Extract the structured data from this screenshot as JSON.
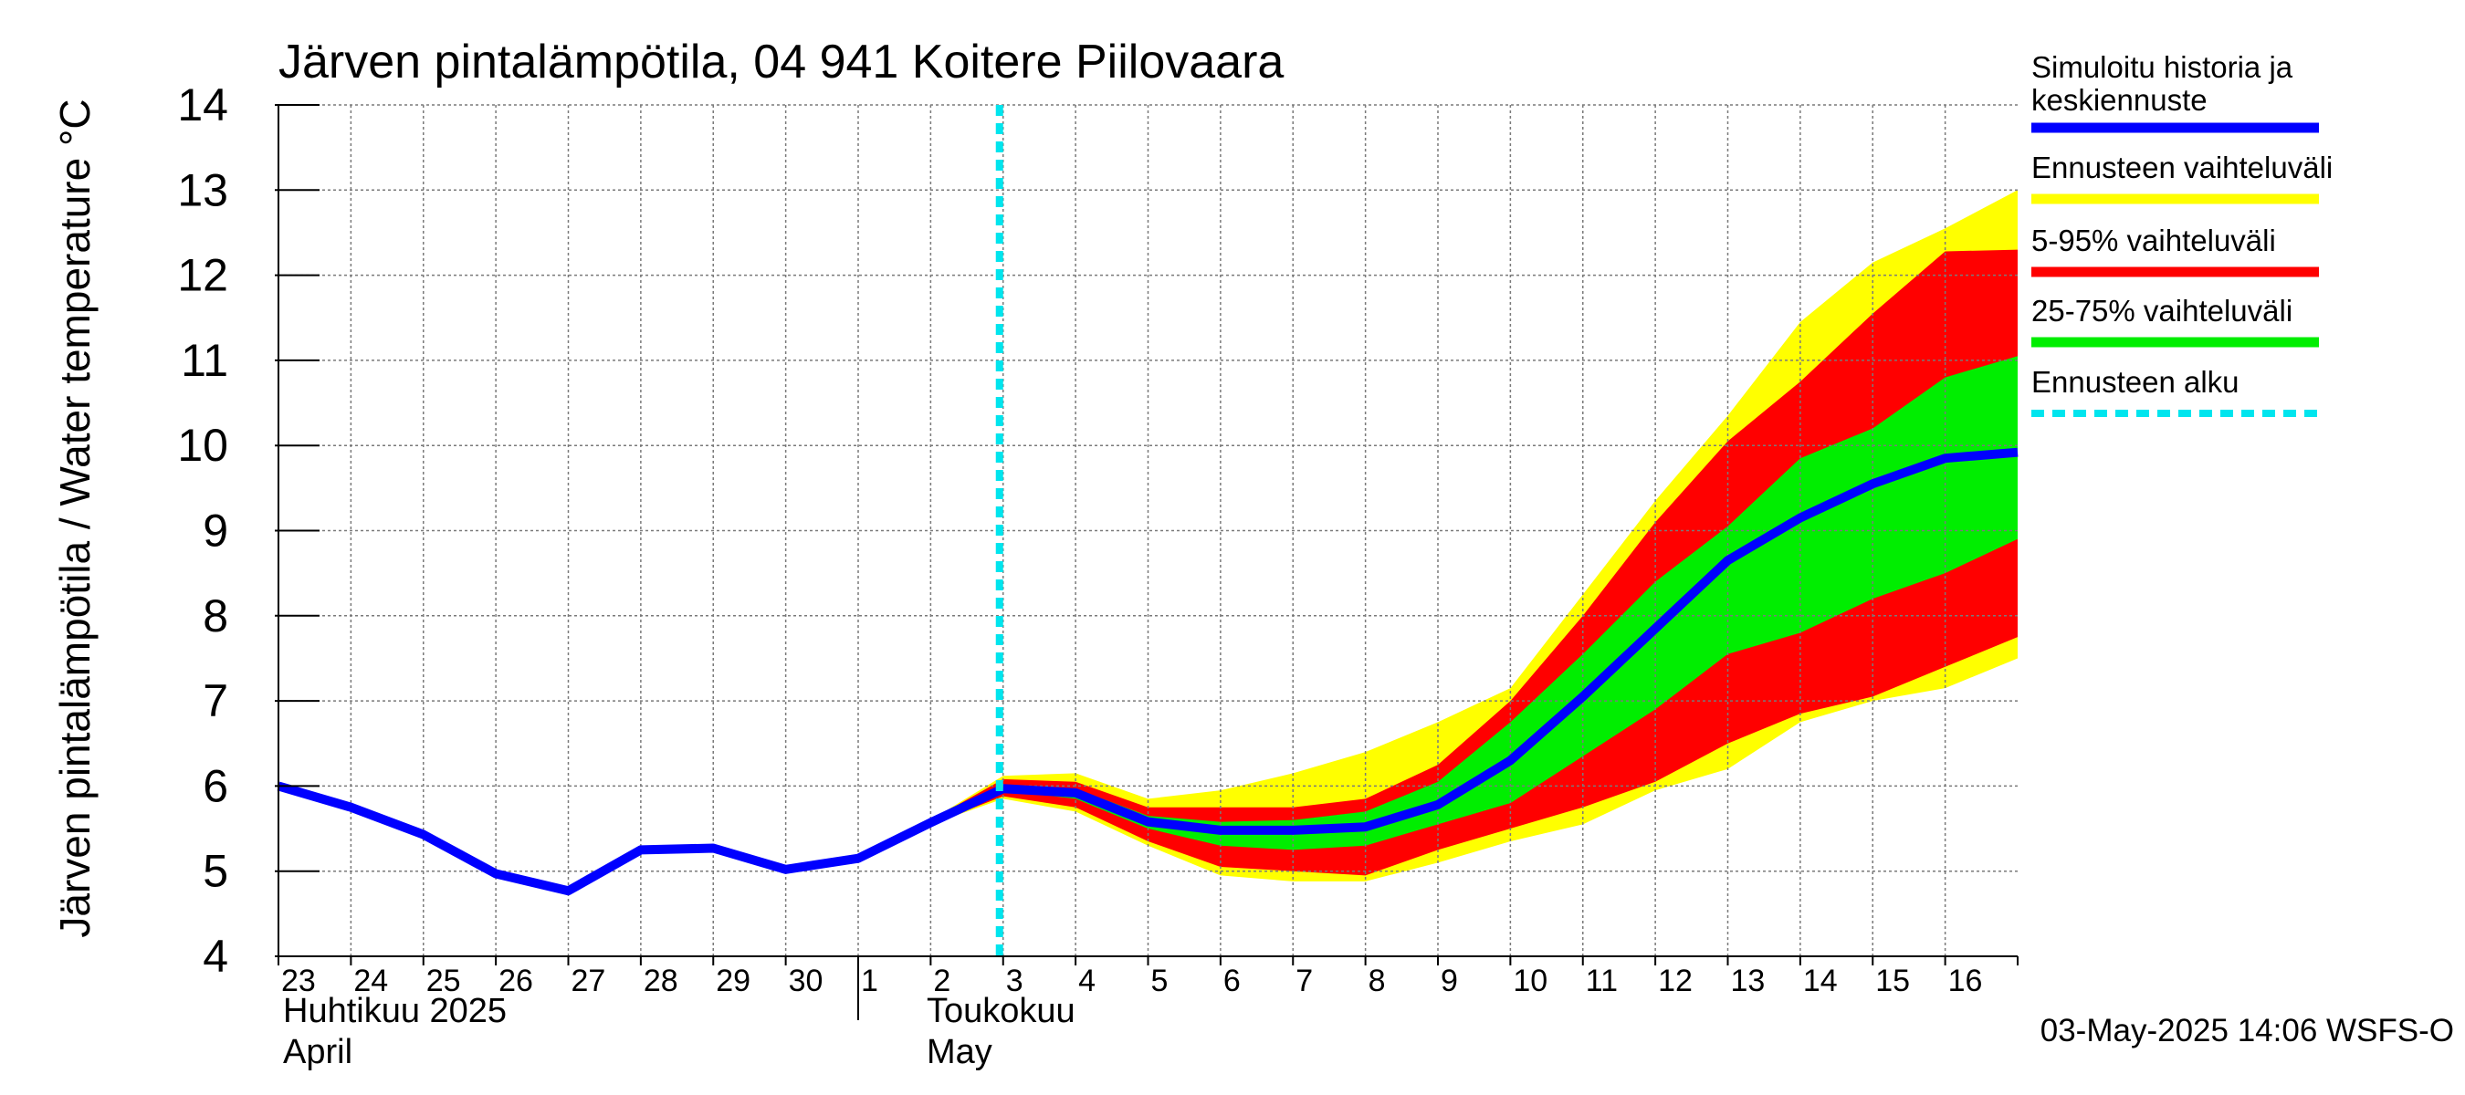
{
  "chart_data": {
    "type": "area",
    "title": "Järven pintalämpötila, 04 941 Koitere Piilovaara",
    "ylabel": "Järven pintalämpötila / Water temperature °C",
    "ylim": [
      4,
      14
    ],
    "yticks": [
      4,
      5,
      6,
      7,
      8,
      9,
      10,
      11,
      12,
      13,
      14
    ],
    "x_start": "2025-04-23",
    "x_end": "2025-05-17",
    "grid": true,
    "day_labels": [
      "23",
      "24",
      "25",
      "26",
      "27",
      "28",
      "29",
      "30",
      "1",
      "2",
      "3",
      "4",
      "5",
      "6",
      "7",
      "8",
      "9",
      "10",
      "11",
      "12",
      "13",
      "14",
      "15",
      "16"
    ],
    "month_labels": [
      {
        "fi": "Huhtikuu  2025",
        "en": "April",
        "start": "2025-04-23"
      },
      {
        "fi": "Toukokuu",
        "en": "May",
        "start": "2025-05-01"
      }
    ],
    "forecast_start": "2025-05-03",
    "history": {
      "name": "Simuloitu historia ja keskiennuste",
      "color": "#0000ff",
      "x": [
        "2025-04-23",
        "2025-04-24",
        "2025-04-25",
        "2025-04-26",
        "2025-04-27",
        "2025-04-28",
        "2025-04-29",
        "2025-04-30",
        "2025-05-01",
        "2025-05-02",
        "2025-05-03"
      ],
      "y": [
        6.0,
        5.75,
        5.43,
        4.97,
        4.77,
        5.25,
        5.27,
        5.02,
        5.15,
        5.57,
        5.97
      ]
    },
    "median": {
      "x": [
        "2025-05-03",
        "2025-05-04",
        "2025-05-05",
        "2025-05-06",
        "2025-05-07",
        "2025-05-08",
        "2025-05-09",
        "2025-05-10",
        "2025-05-11",
        "2025-05-12",
        "2025-05-13",
        "2025-05-14",
        "2025-05-15",
        "2025-05-16",
        "2025-05-17"
      ],
      "y": [
        5.97,
        5.92,
        5.58,
        5.48,
        5.48,
        5.52,
        5.78,
        6.3,
        7.05,
        7.85,
        8.65,
        9.15,
        9.55,
        9.85,
        9.92
      ]
    },
    "bands": [
      {
        "name": "Ennusteen vaihteluväli",
        "color": "#ffff00",
        "x": [
          "2025-05-02",
          "2025-05-03",
          "2025-05-04",
          "2025-05-05",
          "2025-05-06",
          "2025-05-07",
          "2025-05-08",
          "2025-05-09",
          "2025-05-10",
          "2025-05-11",
          "2025-05-12",
          "2025-05-13",
          "2025-05-14",
          "2025-05-15",
          "2025-05-16",
          "2025-05-17"
        ],
        "upper": [
          5.6,
          6.12,
          6.15,
          5.85,
          5.95,
          6.15,
          6.4,
          6.75,
          7.15,
          8.25,
          9.35,
          10.35,
          11.45,
          12.15,
          12.55,
          13.0
        ],
        "lower": [
          5.55,
          5.85,
          5.7,
          5.3,
          4.95,
          4.88,
          4.88,
          5.1,
          5.35,
          5.55,
          5.95,
          6.2,
          6.75,
          7.0,
          7.15,
          7.5
        ]
      },
      {
        "name": "5-95% vaihteluväli",
        "color": "#ff0000",
        "x": [
          "2025-05-02",
          "2025-05-03",
          "2025-05-04",
          "2025-05-05",
          "2025-05-06",
          "2025-05-07",
          "2025-05-08",
          "2025-05-09",
          "2025-05-10",
          "2025-05-11",
          "2025-05-12",
          "2025-05-13",
          "2025-05-14",
          "2025-05-15",
          "2025-05-16",
          "2025-05-17"
        ],
        "upper": [
          5.6,
          6.08,
          6.05,
          5.75,
          5.75,
          5.75,
          5.85,
          6.25,
          7.0,
          8.0,
          9.1,
          10.05,
          10.75,
          11.55,
          12.28,
          12.3
        ],
        "lower": [
          5.55,
          5.88,
          5.75,
          5.35,
          5.05,
          5.0,
          4.95,
          5.25,
          5.5,
          5.75,
          6.05,
          6.5,
          6.85,
          7.05,
          7.4,
          7.75
        ]
      },
      {
        "name": "25-75% vaihteluväli",
        "color": "#00ee00",
        "x": [
          "2025-05-03",
          "2025-05-04",
          "2025-05-05",
          "2025-05-06",
          "2025-05-07",
          "2025-05-08",
          "2025-05-09",
          "2025-05-10",
          "2025-05-11",
          "2025-05-12",
          "2025-05-13",
          "2025-05-14",
          "2025-05-15",
          "2025-05-16",
          "2025-05-17"
        ],
        "upper": [
          6.0,
          5.97,
          5.65,
          5.58,
          5.6,
          5.7,
          6.05,
          6.75,
          7.55,
          8.4,
          9.05,
          9.85,
          10.2,
          10.8,
          11.05
        ],
        "lower": [
          5.95,
          5.85,
          5.5,
          5.3,
          5.25,
          5.3,
          5.55,
          5.8,
          6.35,
          6.9,
          7.55,
          7.8,
          8.2,
          8.5,
          8.9
        ]
      }
    ],
    "legend_extra": {
      "name": "Ennusteen alku",
      "color": "#00e5ee"
    },
    "legend_position": "right"
  },
  "footer": {
    "timestamp": "03-May-2025 14:06 WSFS-O"
  }
}
